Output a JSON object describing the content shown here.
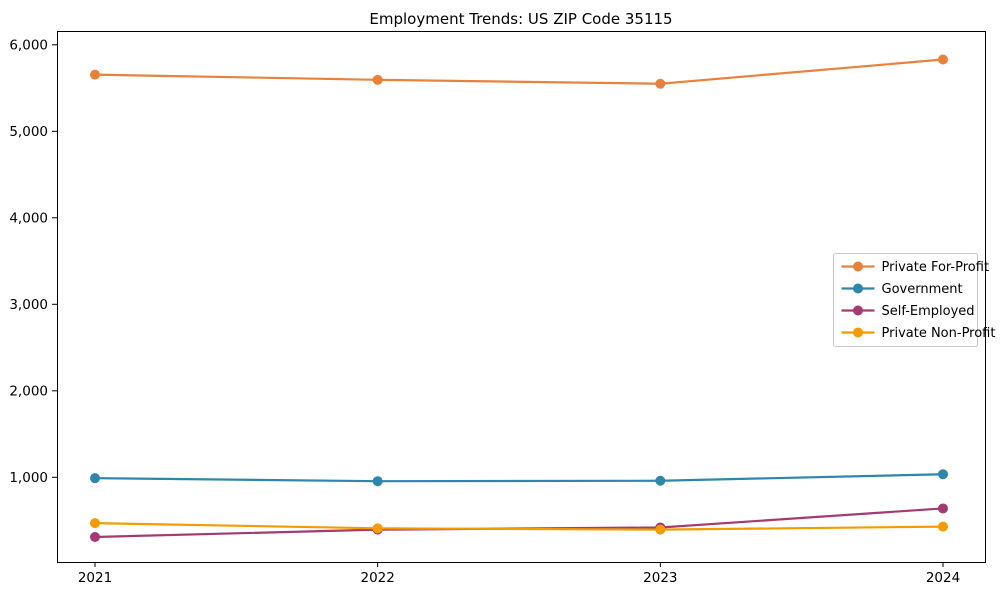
{
  "title": "Employment Trends: US ZIP Code 35115",
  "chart_data": {
    "type": "line",
    "title": "Employment Trends: US ZIP Code 35115",
    "xlabel": "",
    "ylabel": "",
    "x": [
      "2021",
      "2022",
      "2023",
      "2024"
    ],
    "series": [
      {
        "name": "Private For-Profit",
        "color": "#E8813C",
        "values": [
          5655,
          5595,
          5550,
          5830
        ]
      },
      {
        "name": "Government",
        "color": "#2E86AB",
        "values": [
          990,
          955,
          960,
          1035
        ]
      },
      {
        "name": "Self-Employed",
        "color": "#A23B72",
        "values": [
          310,
          395,
          420,
          640
        ]
      },
      {
        "name": "Private Non-Profit",
        "color": "#F49B00",
        "values": [
          470,
          410,
          395,
          430
        ]
      }
    ],
    "yticks": [
      1000,
      2000,
      3000,
      4000,
      5000,
      6000
    ],
    "ytick_labels": [
      "1,000",
      "2,000",
      "3,000",
      "4,000",
      "5,000",
      "6,000"
    ],
    "xtick_labels": [
      "2021",
      "2022",
      "2023",
      "2024"
    ],
    "ylim": [
      21,
      6160
    ],
    "grid": false,
    "legend_position": "center-right",
    "legend_border_color": "#c9c9c9",
    "axis_color": "#000000"
  }
}
